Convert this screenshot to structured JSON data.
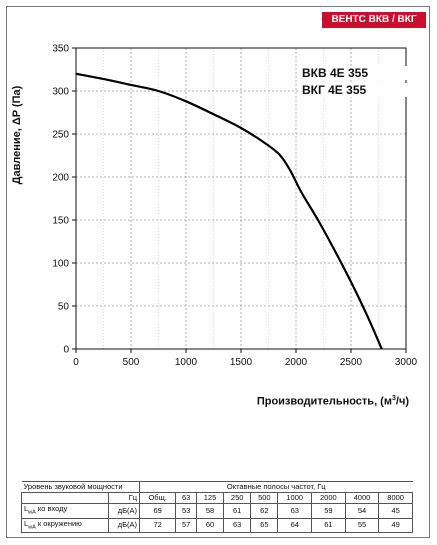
{
  "brand": "ВЕНТС ВКВ / ВКГ",
  "models": [
    "ВКВ 4Е 355",
    "ВКГ 4Е 355"
  ],
  "chart_data": {
    "type": "line",
    "xlabel": "Производительность, (м³/ч)",
    "xlabel_main": "Производительность, (м",
    "xlabel_sup": "3",
    "xlabel_tail": "/ч)",
    "ylabel": "Давление, ΔP (Па)",
    "xlim": [
      0,
      3000
    ],
    "ylim": [
      0,
      350
    ],
    "xticks": [
      0,
      500,
      1000,
      1500,
      2000,
      2500,
      3000
    ],
    "yticks": [
      0,
      50,
      100,
      150,
      200,
      250,
      300,
      350
    ],
    "grid": true,
    "series": [
      {
        "color": "#000000",
        "x": [
          0,
          250,
          500,
          750,
          1000,
          1250,
          1500,
          1700,
          1850,
          1950,
          2050,
          2200,
          2350,
          2500,
          2650,
          2780
        ],
        "y": [
          320,
          314,
          307,
          300,
          288,
          273,
          257,
          241,
          226,
          207,
          182,
          150,
          115,
          78,
          38,
          0
        ]
      }
    ]
  },
  "sound_table": {
    "title": "Уровень звуковой мощности",
    "bands_title": "Октавные полосы частот, Гц",
    "hz_label": "Гц",
    "columns": [
      "Общ.",
      "63",
      "125",
      "250",
      "500",
      "1000",
      "2000",
      "4000",
      "8000"
    ],
    "rows": [
      {
        "label_main": "L",
        "label_sub": "wA",
        "label_tail": " ко входу",
        "unit": "дБ(A)",
        "values": [
          "69",
          "53",
          "58",
          "61",
          "62",
          "63",
          "59",
          "54",
          "45"
        ]
      },
      {
        "label_main": "L",
        "label_sub": "wA",
        "label_tail": " к окружению",
        "unit": "дБ(A)",
        "values": [
          "72",
          "57",
          "60",
          "63",
          "65",
          "64",
          "61",
          "55",
          "49"
        ]
      }
    ]
  }
}
